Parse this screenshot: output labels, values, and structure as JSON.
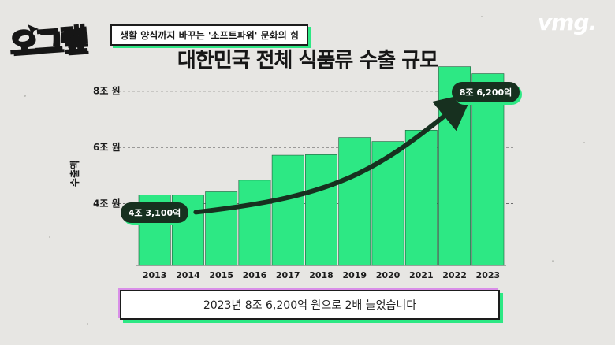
{
  "header": {
    "logo_text": "오그랲",
    "topic": "생활 양식까지 바꾸는 '소프트파워' 문화의 힘",
    "brand": "vmg."
  },
  "chart_data": {
    "type": "bar",
    "title": "대한민국 전체 식품류 수출 규모",
    "ylabel": "수출액",
    "xlabel": "",
    "categories": [
      "2013",
      "2014",
      "2015",
      "2016",
      "2017",
      "2018",
      "2019",
      "2020",
      "2021",
      "2022",
      "2023"
    ],
    "values": [
      4.31,
      4.3,
      4.42,
      4.83,
      5.72,
      5.74,
      6.35,
      6.21,
      6.61,
      8.87,
      8.62
    ],
    "yticks": [
      {
        "value": 4,
        "label": "4조 원"
      },
      {
        "value": 6,
        "label": "6조 원"
      },
      {
        "value": 8,
        "label": "8조 원"
      }
    ],
    "ylim": [
      1.8,
      9.0
    ],
    "grid": true,
    "bar_color": "#2de884",
    "annotations": [
      {
        "text": "4조 3,100억",
        "year": "2013"
      },
      {
        "text": "8조 6,200억",
        "year": "2023"
      }
    ]
  },
  "caption": "2023년 8조 6,200억 원으로 2배 늘었습니다"
}
